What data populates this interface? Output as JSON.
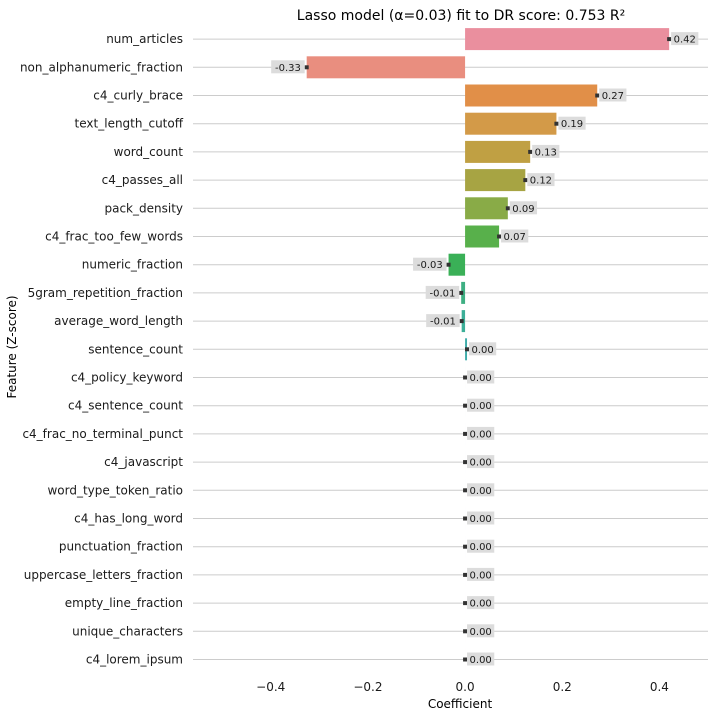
{
  "chart_data": {
    "type": "bar",
    "orientation": "horizontal",
    "title": "Lasso model (α=0.03) fit to DR score: 0.753 R²",
    "xlabel": "Coefficient",
    "ylabel": "Feature (Z-score)",
    "xlim": [
      -0.56,
      0.5
    ],
    "xticks": [
      -0.4,
      -0.2,
      0.0,
      0.2,
      0.4
    ],
    "xtick_labels": [
      "−0.4",
      "−0.2",
      "0.0",
      "0.2",
      "0.4"
    ],
    "grid": "horizontal",
    "categories": [
      "num_articles",
      "non_alphanumeric_fraction",
      "c4_curly_brace",
      "text_length_cutoff",
      "word_count",
      "c4_passes_all",
      "pack_density",
      "c4_frac_too_few_words",
      "numeric_fraction",
      "5gram_repetition_fraction",
      "average_word_length",
      "sentence_count",
      "c4_policy_keyword",
      "c4_sentence_count",
      "c4_frac_no_terminal_punct",
      "c4_javascript",
      "word_type_token_ratio",
      "c4_has_long_word",
      "punctuation_fraction",
      "uppercase_letters_fraction",
      "empty_line_fraction",
      "unique_characters",
      "c4_lorem_ipsum"
    ],
    "values": [
      0.42,
      -0.326,
      0.272,
      0.188,
      0.134,
      0.124,
      0.088,
      0.07,
      -0.034,
      -0.008,
      -0.007,
      0.004,
      0.0,
      0.0,
      0.0,
      0.0,
      0.0,
      0.0,
      0.0,
      0.0,
      0.0,
      0.0,
      0.0
    ],
    "labels": [
      "0.42",
      "-0.33",
      "0.27",
      "0.19",
      "0.13",
      "0.12",
      "0.09",
      "0.07",
      "-0.03",
      "-0.01",
      "-0.01",
      "0.00",
      "0.00",
      "0.00",
      "0.00",
      "0.00",
      "0.00",
      "0.00",
      "0.00",
      "0.00",
      "0.00",
      "0.00",
      "0.00"
    ],
    "colors": [
      "#ea8f9e",
      "#e98e7f",
      "#e18f48",
      "#d39a48",
      "#c0a043",
      "#a7a443",
      "#89ab47",
      "#58b04b",
      "#3ab057",
      "#3eaf82",
      "#3caf98",
      "#3eacaa",
      "#40aab8",
      "#42a8c6",
      "#47a4d3",
      "#6a9dde",
      "#8a97e4",
      "#a58ee8",
      "#c084e8",
      "#d57ce2",
      "#e27bd2",
      "#e57ebf",
      "#e982ab"
    ]
  }
}
